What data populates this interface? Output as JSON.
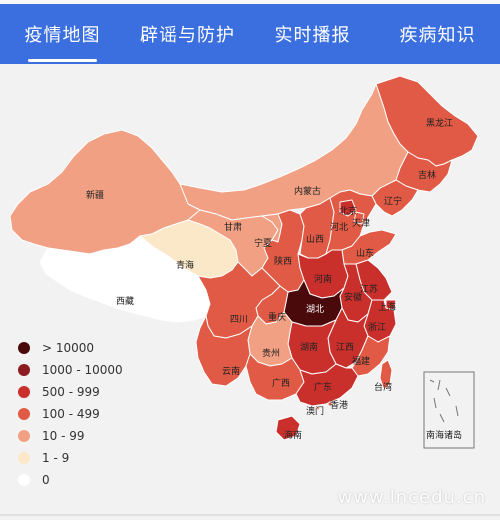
{
  "tabs": [
    {
      "label": "疫情地图"
    },
    {
      "label": "辟谣与防护"
    },
    {
      "label": "实时播报"
    },
    {
      "label": "疾病知识"
    }
  ],
  "colors": {
    "tab_bg": "#3b6fe0",
    "gt10000": "#4a0a0c",
    "c1000_10000": "#8c1c1f",
    "c500_999": "#c9302c",
    "c100_499": "#e05a45",
    "c10_99": "#f1a083",
    "c1_9": "#fbe8c8",
    "c0": "#ffffff"
  },
  "legend": [
    {
      "label": "> 10000",
      "color": "#4a0a0c"
    },
    {
      "label": "1000 - 10000",
      "color": "#8c1c1f"
    },
    {
      "label": "500 - 999",
      "color": "#c9302c"
    },
    {
      "label": "100 - 499",
      "color": "#e05a45"
    },
    {
      "label": "10 - 99",
      "color": "#f1a083"
    },
    {
      "label": "1 - 9",
      "color": "#fbe8c8"
    },
    {
      "label": "0",
      "color": "#ffffff"
    }
  ],
  "provinces": {
    "heilongjiang": "黑龙江",
    "jilin": "吉林",
    "liaoning": "辽宁",
    "neimenggu": "内蒙古",
    "beijing": "北京",
    "tianjin": "天津",
    "hebei": "河北",
    "shanxi": "山西",
    "shandong": "山东",
    "xinjiang": "新疆",
    "gansu": "甘肃",
    "ningxia": "宁夏",
    "qinghai": "青海",
    "shaanxi": "陕西",
    "henan": "河南",
    "jiangsu": "江苏",
    "xizang": "西藏",
    "anhui": "安徽",
    "shanghai": "上海",
    "hubei": "湖北",
    "sichuan": "四川",
    "chongqing": "重庆",
    "zhejiang": "浙江",
    "guizhou": "贵州",
    "hunan": "湖南",
    "jiangxi": "江西",
    "fujian": "福建",
    "yunnan": "云南",
    "guangxi": "广西",
    "guangdong": "广东",
    "taiwan": "台湾",
    "xianggang": "香港",
    "aomen": "澳门",
    "hainan": "海南",
    "nanhai": "南海诸岛"
  },
  "watermark": "www.lncedu.cn"
}
